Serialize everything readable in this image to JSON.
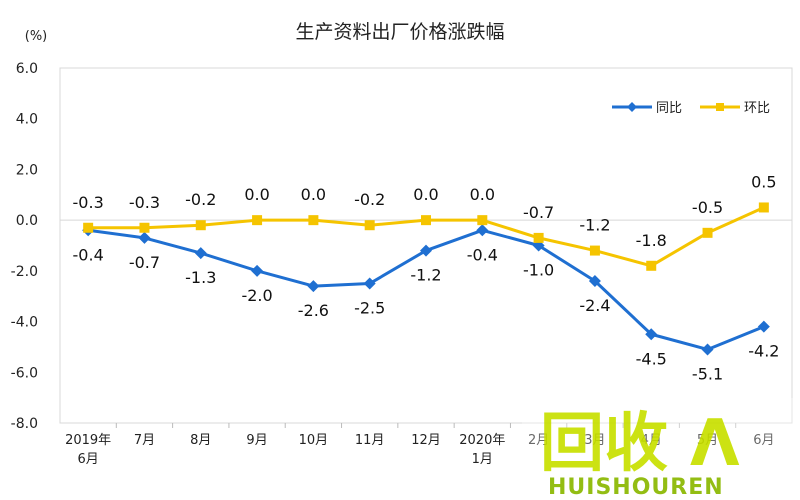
{
  "chart_data": {
    "type": "line",
    "title": "生产资料出厂价格涨跌幅",
    "unit_label": "(%)",
    "ylim": [
      -8.0,
      6.0
    ],
    "yticks": [
      "6.0",
      "4.0",
      "2.0",
      "0.0",
      "-2.0",
      "-4.0",
      "-6.0",
      "-8.0"
    ],
    "ytick_values": [
      6,
      4,
      2,
      0,
      -2,
      -4,
      -6,
      -8
    ],
    "categories": [
      [
        "2019年",
        "6月"
      ],
      [
        "7月"
      ],
      [
        "8月"
      ],
      [
        "9月"
      ],
      [
        "10月"
      ],
      [
        "11月"
      ],
      [
        "12月"
      ],
      [
        "2020年",
        "1月"
      ],
      [
        "2月"
      ],
      [
        "3月"
      ],
      [
        "4月"
      ],
      [
        "5月"
      ],
      [
        "6月"
      ]
    ],
    "series": [
      {
        "name": "同比",
        "color": "#1f6fd1",
        "marker": "diamond",
        "values": [
          -0.4,
          -0.7,
          -1.3,
          -2.0,
          -2.6,
          -2.5,
          -1.2,
          -0.4,
          -1.0,
          -2.4,
          -4.5,
          -5.1,
          -4.2
        ],
        "labels": [
          "-0.4",
          "-0.7",
          "-1.3",
          "-2.0",
          "-2.6",
          "-2.5",
          "-1.2",
          "-0.4",
          "-1.0",
          "-2.4",
          "-4.5",
          "-5.1",
          "-4.2"
        ]
      },
      {
        "name": "环比",
        "color": "#f5c400",
        "marker": "square",
        "values": [
          -0.3,
          -0.3,
          -0.2,
          0.0,
          0.0,
          -0.2,
          0.0,
          0.0,
          -0.7,
          -1.2,
          -1.8,
          -0.5,
          0.5
        ],
        "labels": [
          "-0.3",
          "-0.3",
          "-0.2",
          "0.0",
          "0.0",
          "-0.2",
          "0.0",
          "0.0",
          "-0.7",
          "-1.2",
          "-1.8",
          "-0.5",
          "0.5"
        ]
      }
    ],
    "legend_position": "top-right",
    "grid": false
  },
  "watermark": {
    "text": "回收",
    "sub": "HUISHOUREN",
    "color": "#c8e000",
    "sub_color": "#8ab800"
  }
}
